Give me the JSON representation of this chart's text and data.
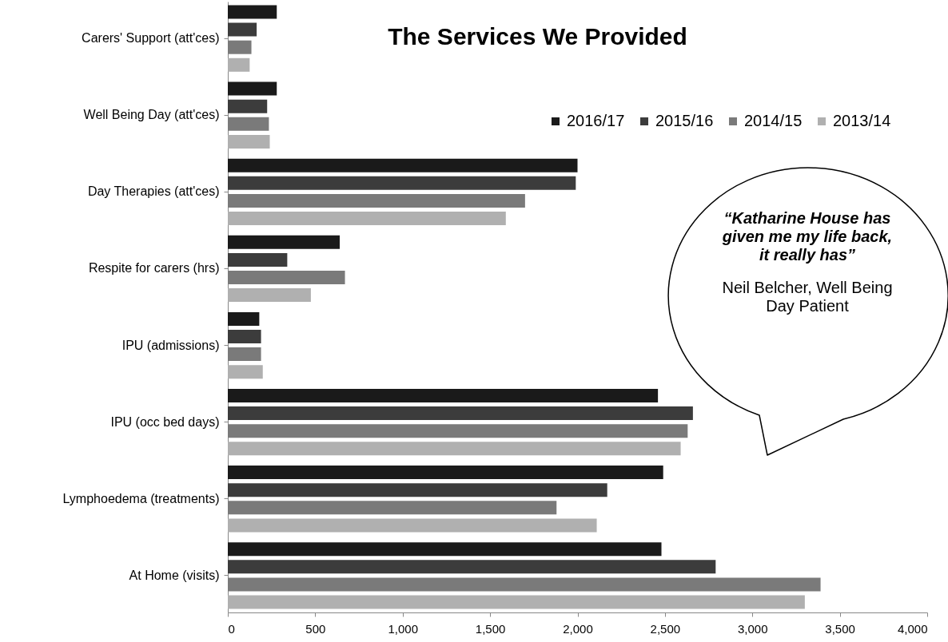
{
  "chart_data": {
    "type": "bar",
    "orientation": "horizontal",
    "title": "The Services We Provided",
    "categories": [
      "Carers' Support (att'ces)",
      "Well Being Day (att'ces)",
      "Day Therapies (att'ces)",
      "Respite for carers (hrs)",
      "IPU (admissions)",
      "IPU (occ bed days)",
      "Lymphoedema (treatments)",
      "At Home (visits)"
    ],
    "series": [
      {
        "name": "2016/17",
        "color": "#1a1a1a",
        "values": [
          280,
          280,
          2000,
          640,
          180,
          2460,
          2490,
          2480
        ]
      },
      {
        "name": "2015/16",
        "color": "#3c3c3c",
        "values": [
          165,
          225,
          1990,
          340,
          190,
          2660,
          2170,
          2790
        ]
      },
      {
        "name": "2014/15",
        "color": "#7a7a7a",
        "values": [
          135,
          235,
          1700,
          670,
          190,
          2630,
          1880,
          3390
        ]
      },
      {
        "name": "2013/14",
        "color": "#b0b0b0",
        "values": [
          125,
          240,
          1590,
          475,
          200,
          2590,
          2110,
          3300
        ]
      }
    ],
    "xlim": [
      0,
      4000
    ],
    "xticks": [
      0,
      500,
      {
        "value": 1000,
        "label": "1,000"
      },
      {
        "value": 1500,
        "label": "1,500"
      },
      {
        "value": 2000,
        "label": "2,000"
      },
      {
        "value": 2500,
        "label": "2,500"
      },
      {
        "value": 3000,
        "label": "3,000"
      },
      {
        "value": 3500,
        "label": "3,500"
      },
      {
        "value": 4000,
        "label": "4,000"
      }
    ],
    "grid": false,
    "legend": "top right",
    "annotations": [
      "“Katharine House has given me my life back, it really has”",
      "Neil Belcher, Well Being Day Patient"
    ]
  }
}
